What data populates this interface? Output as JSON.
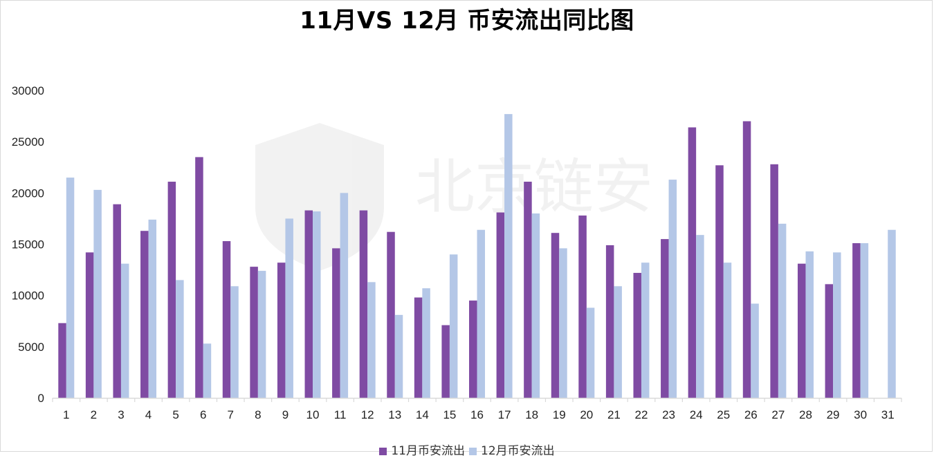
{
  "chart_data": {
    "type": "bar",
    "title": "11月VS 12月 币安流出同比图",
    "xlabel": "",
    "ylabel": "",
    "ylim": [
      0,
      30000
    ],
    "yticks": [
      0,
      5000,
      10000,
      15000,
      20000,
      25000,
      30000
    ],
    "grid": false,
    "legend_position": "bottom",
    "categories": [
      "1",
      "2",
      "3",
      "4",
      "5",
      "6",
      "7",
      "8",
      "9",
      "10",
      "11",
      "12",
      "13",
      "14",
      "15",
      "16",
      "17",
      "18",
      "19",
      "20",
      "21",
      "22",
      "23",
      "24",
      "25",
      "26",
      "27",
      "28",
      "29",
      "30",
      "31"
    ],
    "series": [
      {
        "name": "11月币安流出",
        "color": "#7f4ba3",
        "values": [
          7300,
          14200,
          18900,
          16300,
          21100,
          23500,
          15300,
          12800,
          13200,
          18300,
          14600,
          18300,
          16200,
          9800,
          7100,
          9500,
          18100,
          21100,
          16100,
          17800,
          14900,
          12200,
          15500,
          26400,
          22700,
          27000,
          22800,
          13100,
          11100,
          15100,
          null
        ]
      },
      {
        "name": "12月币安流出",
        "color": "#b4c7e7",
        "values": [
          21500,
          20300,
          13100,
          17400,
          11500,
          5300,
          10900,
          12400,
          17500,
          18200,
          20000,
          11300,
          8100,
          10700,
          14000,
          16400,
          27700,
          18000,
          14600,
          8800,
          10900,
          13200,
          21300,
          15900,
          13200,
          9200,
          17000,
          14300,
          14200,
          15100,
          16400
        ]
      }
    ]
  }
}
